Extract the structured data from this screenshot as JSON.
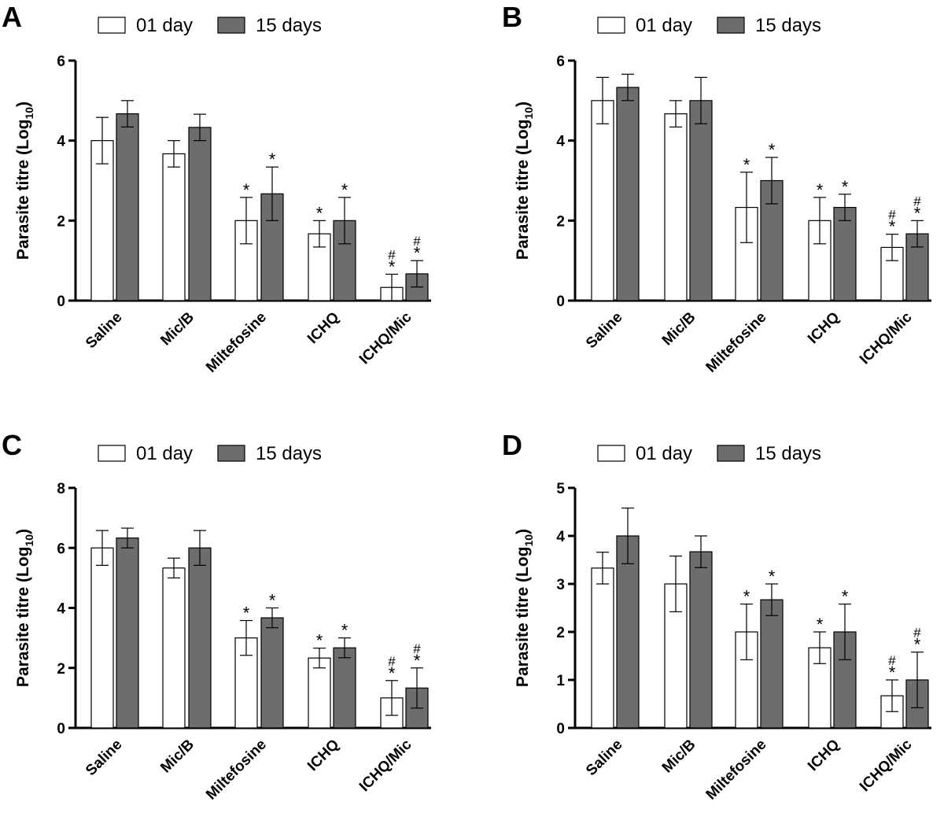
{
  "chart_data": [
    {
      "panel": "A",
      "type": "bar",
      "ylabel": "Parasite titre (Log",
      "ylabel_sub": "10",
      "ylabel_end": ")",
      "ylim": [
        0,
        6
      ],
      "yticks": [
        "0",
        "2",
        "4",
        "6"
      ],
      "categories": [
        "Saline",
        "Mic/B",
        "Miltefosine",
        "ICHQ",
        "ICHQ/Mic"
      ],
      "series": [
        {
          "name": "01 day",
          "values": [
            4.0,
            3.67,
            2.0,
            1.67,
            0.33
          ],
          "errors": [
            0.58,
            0.33,
            0.58,
            0.33,
            0.33
          ],
          "marks": [
            "",
            "",
            "*",
            "*",
            "#*"
          ]
        },
        {
          "name": "15 days",
          "values": [
            4.67,
            4.33,
            2.67,
            2.0,
            0.67
          ],
          "errors": [
            0.33,
            0.33,
            0.67,
            0.58,
            0.33
          ],
          "marks": [
            "",
            "",
            "*",
            "*",
            "#*"
          ]
        }
      ]
    },
    {
      "panel": "B",
      "type": "bar",
      "ylabel": "Parasite titre (Log",
      "ylabel_sub": "10",
      "ylabel_end": ")",
      "ylim": [
        0,
        6
      ],
      "yticks": [
        "0",
        "2",
        "4",
        "6"
      ],
      "categories": [
        "Saline",
        "Mic/B",
        "Miltefosine",
        "ICHQ",
        "ICHQ/Mic"
      ],
      "series": [
        {
          "name": "01 day",
          "values": [
            5.0,
            4.67,
            2.33,
            2.0,
            1.33
          ],
          "errors": [
            0.58,
            0.33,
            0.88,
            0.58,
            0.33
          ],
          "marks": [
            "",
            "",
            "*",
            "*",
            "#*"
          ]
        },
        {
          "name": "15 days",
          "values": [
            5.33,
            5.0,
            3.0,
            2.33,
            1.67
          ],
          "errors": [
            0.33,
            0.58,
            0.58,
            0.33,
            0.33
          ],
          "marks": [
            "",
            "",
            "*",
            "*",
            "#*"
          ]
        }
      ]
    },
    {
      "panel": "C",
      "type": "bar",
      "ylabel": "Parasite titre (Log",
      "ylabel_sub": "10",
      "ylabel_end": ")",
      "ylim": [
        0,
        8
      ],
      "yticks": [
        "0",
        "2",
        "4",
        "6",
        "8"
      ],
      "categories": [
        "Saline",
        "Mic/B",
        "Miltefosine",
        "ICHQ",
        "ICHQ/Mic"
      ],
      "series": [
        {
          "name": "01 day",
          "values": [
            6.0,
            5.33,
            3.0,
            2.33,
            1.0
          ],
          "errors": [
            0.58,
            0.33,
            0.58,
            0.33,
            0.58
          ],
          "marks": [
            "",
            "",
            "*",
            "*",
            "#*"
          ]
        },
        {
          "name": "15 days",
          "values": [
            6.33,
            6.0,
            3.67,
            2.67,
            1.33
          ],
          "errors": [
            0.33,
            0.58,
            0.33,
            0.33,
            0.67
          ],
          "marks": [
            "",
            "",
            "*",
            "*",
            "#*"
          ]
        }
      ]
    },
    {
      "panel": "D",
      "type": "bar",
      "ylabel": "Parasite titre (Log",
      "ylabel_sub": "10",
      "ylabel_end": ")",
      "ylim": [
        0,
        5
      ],
      "yticks": [
        "0",
        "1",
        "2",
        "3",
        "4",
        "5"
      ],
      "categories": [
        "Saline",
        "Mic/B",
        "Miltefosine",
        "ICHQ",
        "ICHQ/Mic"
      ],
      "series": [
        {
          "name": "01 day",
          "values": [
            3.33,
            3.0,
            2.0,
            1.67,
            0.67
          ],
          "errors": [
            0.33,
            0.58,
            0.58,
            0.33,
            0.33
          ],
          "marks": [
            "",
            "",
            "*",
            "*",
            "#*"
          ]
        },
        {
          "name": "15 days",
          "values": [
            4.0,
            3.67,
            2.67,
            2.0,
            1.0
          ],
          "errors": [
            0.58,
            0.33,
            0.33,
            0.58,
            0.58
          ],
          "marks": [
            "",
            "",
            "*",
            "*",
            "#*"
          ]
        }
      ]
    }
  ],
  "legend": {
    "labels": [
      "01 day",
      "15 days"
    ]
  },
  "colors": {
    "series_1_fill": "#ffffff",
    "series_2_fill": "#6d6d6d",
    "stroke": "#000000"
  }
}
